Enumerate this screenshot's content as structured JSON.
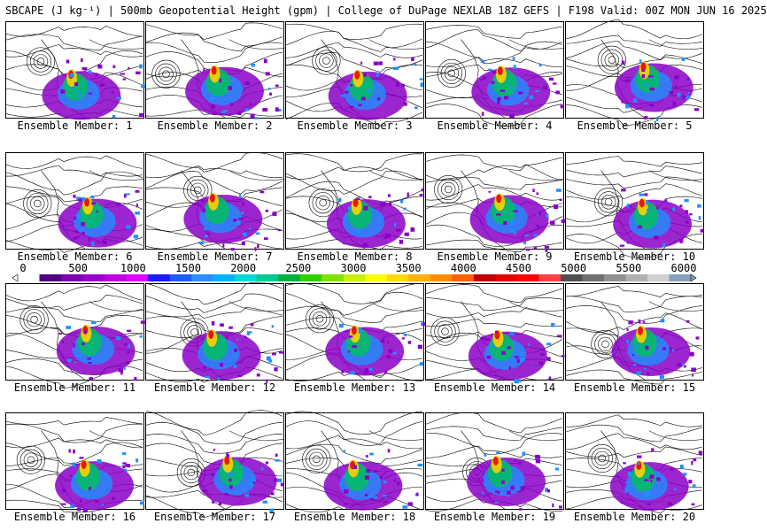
{
  "title": "SBCAPE (J kg⁻¹) | 500mb Geopotential Height (gpm) | College of DuPage NEXLAB 18Z GEFS | F198 Valid: 00Z MON JUN 16 2025",
  "panels": [
    {
      "label": "Ensemble Member: 1"
    },
    {
      "label": "Ensemble Member: 2"
    },
    {
      "label": "Ensemble Member: 3"
    },
    {
      "label": "Ensemble Member: 4"
    },
    {
      "label": "Ensemble Member: 5"
    },
    {
      "label": "Ensemble Member: 6"
    },
    {
      "label": "Ensemble Member: 7"
    },
    {
      "label": "Ensemble Member: 8"
    },
    {
      "label": "Ensemble Member: 9"
    },
    {
      "label": "Ensemble Member: 10"
    },
    {
      "label": "Ensemble Member: 11"
    },
    {
      "label": "Ensemble Member: 12"
    },
    {
      "label": "Ensemble Member: 13"
    },
    {
      "label": "Ensemble Member: 14"
    },
    {
      "label": "Ensemble Member: 15"
    },
    {
      "label": "Ensemble Member: 16"
    },
    {
      "label": "Ensemble Member: 17"
    },
    {
      "label": "Ensemble Member: 18"
    },
    {
      "label": "Ensemble Member: 19"
    },
    {
      "label": "Ensemble Member: 20"
    }
  ],
  "colorbar": {
    "ticks": [
      "0",
      "500",
      "1000",
      "1500",
      "2000",
      "2500",
      "3000",
      "3500",
      "4000",
      "4500",
      "5000",
      "5500",
      "6000"
    ],
    "colors": [
      "#ffffff",
      "#4b0082",
      "#7a00b0",
      "#9b00cc",
      "#c000e0",
      "#e000ff",
      "#1a1aff",
      "#1e5cff",
      "#2a8cff",
      "#00b0ff",
      "#00d8d8",
      "#00c890",
      "#00b040",
      "#30d000",
      "#80e000",
      "#c8f000",
      "#ffff00",
      "#ffd800",
      "#ffb000",
      "#ff8c00",
      "#ff6000",
      "#c00000",
      "#e00000",
      "#ff0000",
      "#ff4040",
      "#505050",
      "#707070",
      "#909090",
      "#b0b0b0",
      "#d0d0d0",
      "#87a0c0"
    ]
  },
  "theme": {
    "cape_low": "#8a00c8",
    "cape_mid": "#1e90ff",
    "cape_high": "#00c060",
    "cape_peak": "#ffd000",
    "cape_max": "#e01010",
    "contour": "#000000"
  }
}
